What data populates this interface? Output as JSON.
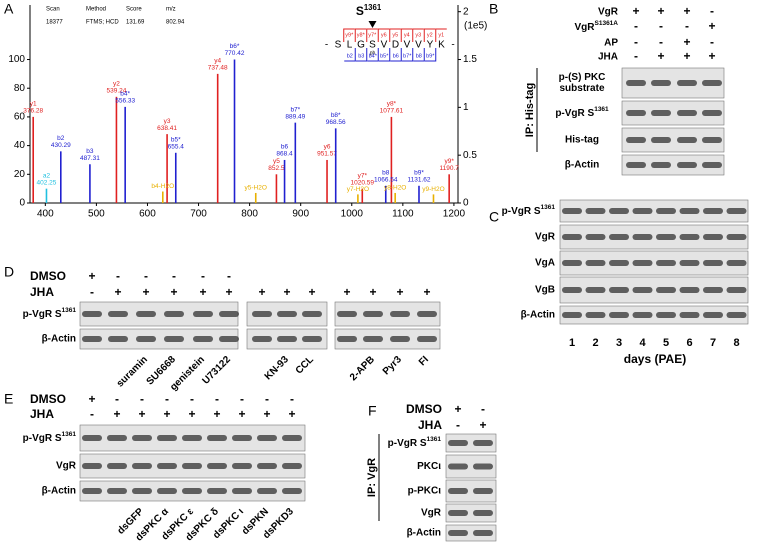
{
  "panel_letters": [
    "A",
    "B",
    "C",
    "D",
    "E",
    "F"
  ],
  "chart_data": {
    "type": "stem",
    "header": [
      [
        "Scan",
        "18377"
      ],
      [
        "Method",
        "FTMS; HCD"
      ],
      [
        "Score",
        "131.69"
      ],
      [
        "m/z",
        "802.94"
      ]
    ],
    "xlim": [
      370,
      1208
    ],
    "xticks": [
      400,
      500,
      600,
      700,
      800,
      900,
      1000,
      1100,
      1200
    ],
    "ylim": [
      0,
      138
    ],
    "yticks": [
      0,
      20,
      40,
      60,
      80,
      100
    ],
    "y2lim": [
      0,
      2.07
    ],
    "y2ticks": [
      0,
      0.5,
      1,
      1.5,
      2
    ],
    "y2_unit": "(1e5)",
    "series": [
      {
        "color": "#e02020",
        "show_mz": true,
        "ions": [
          "y1",
          "y2",
          "y3",
          "y4",
          "y5",
          "y6",
          "y7*",
          "y8*",
          "y9*"
        ],
        "x": [
          376.28,
          539.24,
          638.41,
          737.48,
          852.5,
          951.57,
          1020.59,
          1077.61,
          1190.7
        ],
        "values": [
          60,
          74,
          48,
          90,
          20,
          30,
          10,
          60,
          20
        ]
      },
      {
        "color": "#2020d0",
        "show_mz": true,
        "ions": [
          "b2",
          "b3",
          "b4*",
          "b5*",
          "b6*",
          "b6",
          "b7*",
          "b8*",
          "b8",
          "b9*"
        ],
        "x": [
          430.29,
          487.31,
          556.33,
          655.4,
          770.42,
          868.4,
          889.49,
          968.56,
          1066.54,
          1131.62
        ],
        "values": [
          36,
          27,
          67,
          35,
          100,
          30,
          56,
          52,
          12,
          12
        ]
      },
      {
        "color": "#20c0e0",
        "show_mz": true,
        "ions": [
          "a2"
        ],
        "x": [
          402.25
        ],
        "values": [
          10
        ]
      },
      {
        "color": "#e8b000",
        "show_mz": false,
        "ions": [
          "b4-H2O",
          "y5-H2O",
          "y7-H2O",
          "y8-H2O",
          "y9-H2O"
        ],
        "x": [
          630,
          812,
          1012,
          1085,
          1160
        ],
        "values": [
          8,
          7,
          6,
          7,
          6
        ]
      }
    ],
    "sequence": {
      "site": {
        "text": "S",
        "sup": "1361"
      },
      "ends": [
        "-",
        "-"
      ],
      "residues": [
        "S",
        "L",
        "G",
        "S",
        "V",
        "D",
        "V",
        "V",
        "Y",
        "K"
      ],
      "phospho": "ph",
      "y_ions": [
        "y9*",
        "y8*",
        "y7*",
        "y6",
        "y5",
        "y4",
        "y3",
        "y2",
        "y1"
      ],
      "b_ions": [
        "b2",
        "b3",
        "b4*",
        "b5*",
        "b6",
        "b7*",
        "b8",
        "b9*"
      ]
    }
  },
  "panels": {
    "B": {
      "conditions": [
        {
          "label": "VgR",
          "signs": [
            "+",
            "+",
            "+",
            "-"
          ]
        },
        {
          "label": {
            "text": "VgR",
            "sup": "S1361A"
          },
          "signs": [
            "-",
            "-",
            "-",
            "+"
          ]
        },
        {
          "label": "AP",
          "signs": [
            "-",
            "-",
            "+",
            "-"
          ]
        },
        {
          "label": "JHA",
          "signs": [
            "-",
            "+",
            "+",
            "+"
          ]
        }
      ],
      "rows": [
        {
          "lines": [
            "p-(S) PKC",
            "substrate"
          ]
        },
        {
          "text": "p-VgR S",
          "sup": "1361"
        },
        "His-tag",
        "β-Actin"
      ],
      "ip": "IP: His-tag"
    },
    "C": {
      "rows": [
        {
          "text": "p-VgR S",
          "sup": "1361"
        },
        "VgR",
        "VgA",
        "VgB",
        "β-Actin"
      ],
      "lanes": [
        "1",
        "2",
        "3",
        "4",
        "5",
        "6",
        "7",
        "8"
      ],
      "xlabel": "days (PAE)"
    },
    "D": {
      "conditions": [
        "DMSO",
        "JHA"
      ],
      "groups": [
        {
          "signs": [
            [
              "+",
              "-",
              "-",
              "-",
              "-",
              "-"
            ],
            [
              "-",
              "+",
              "+",
              "+",
              "+",
              "+"
            ]
          ],
          "treatments": [
            null,
            null,
            "suramin",
            "SU6668",
            "genistein",
            "U73122"
          ]
        },
        {
          "signs": [
            [],
            [
              "+",
              "+",
              "+"
            ]
          ],
          "treatments": [
            null,
            "KN-93",
            "CCL"
          ]
        },
        {
          "signs": [
            [],
            [
              "+",
              "+",
              "+",
              "+"
            ]
          ],
          "treatments": [
            null,
            "2-APB",
            "Pyr3",
            "FI"
          ]
        }
      ],
      "rows": [
        {
          "text": "p-VgR S",
          "sup": "1361"
        },
        "β-Actin"
      ]
    },
    "E": {
      "conditions": [
        {
          "label": "DMSO",
          "signs": [
            "+",
            "-",
            "-",
            "-",
            "-",
            "-",
            "-",
            "-",
            "-"
          ]
        },
        {
          "label": "JHA",
          "signs": [
            "-",
            "+",
            "+",
            "+",
            "+",
            "+",
            "+",
            "+",
            "+"
          ]
        }
      ],
      "treatments": [
        null,
        null,
        "dsGFP",
        "dsPKC α",
        "dsPKC ε",
        "dsPKC δ",
        "dsPKC ι",
        "dsPKN",
        "dsPKD3"
      ],
      "rows": [
        {
          "text": "p-VgR S",
          "sup": "1361"
        },
        "VgR",
        "β-Actin"
      ]
    },
    "F": {
      "conditions": [
        {
          "label": "DMSO",
          "signs": [
            "+",
            "-"
          ]
        },
        {
          "label": "JHA",
          "signs": [
            "-",
            "+"
          ]
        }
      ],
      "rows": [
        {
          "text": "p-VgR S",
          "sup": "1361"
        },
        "PKCι",
        "p-PKCι",
        "VgR",
        "β-Actin"
      ],
      "ip": "IP: VgR"
    }
  }
}
